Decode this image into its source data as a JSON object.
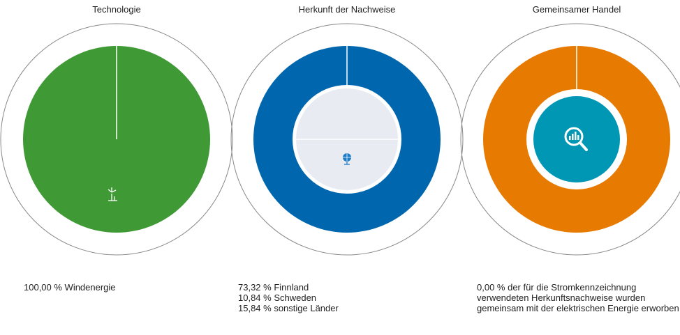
{
  "panels": [
    {
      "title": "Technologie",
      "lines": [
        "100,00 % Windenergie"
      ]
    },
    {
      "title": "Herkunft der Nachweise",
      "lines": [
        "73,32 % Finnland",
        "10,84 % Schweden",
        "15,84 % sonstige Länder"
      ]
    },
    {
      "title": "Gemeinsamer Handel",
      "lines": [
        "0,00 % der für die Stromkennzeichnung verwendeten Herkunftsnachweise wurden gemeinsam mit der elektrischen Energie erworben"
      ]
    }
  ]
}
